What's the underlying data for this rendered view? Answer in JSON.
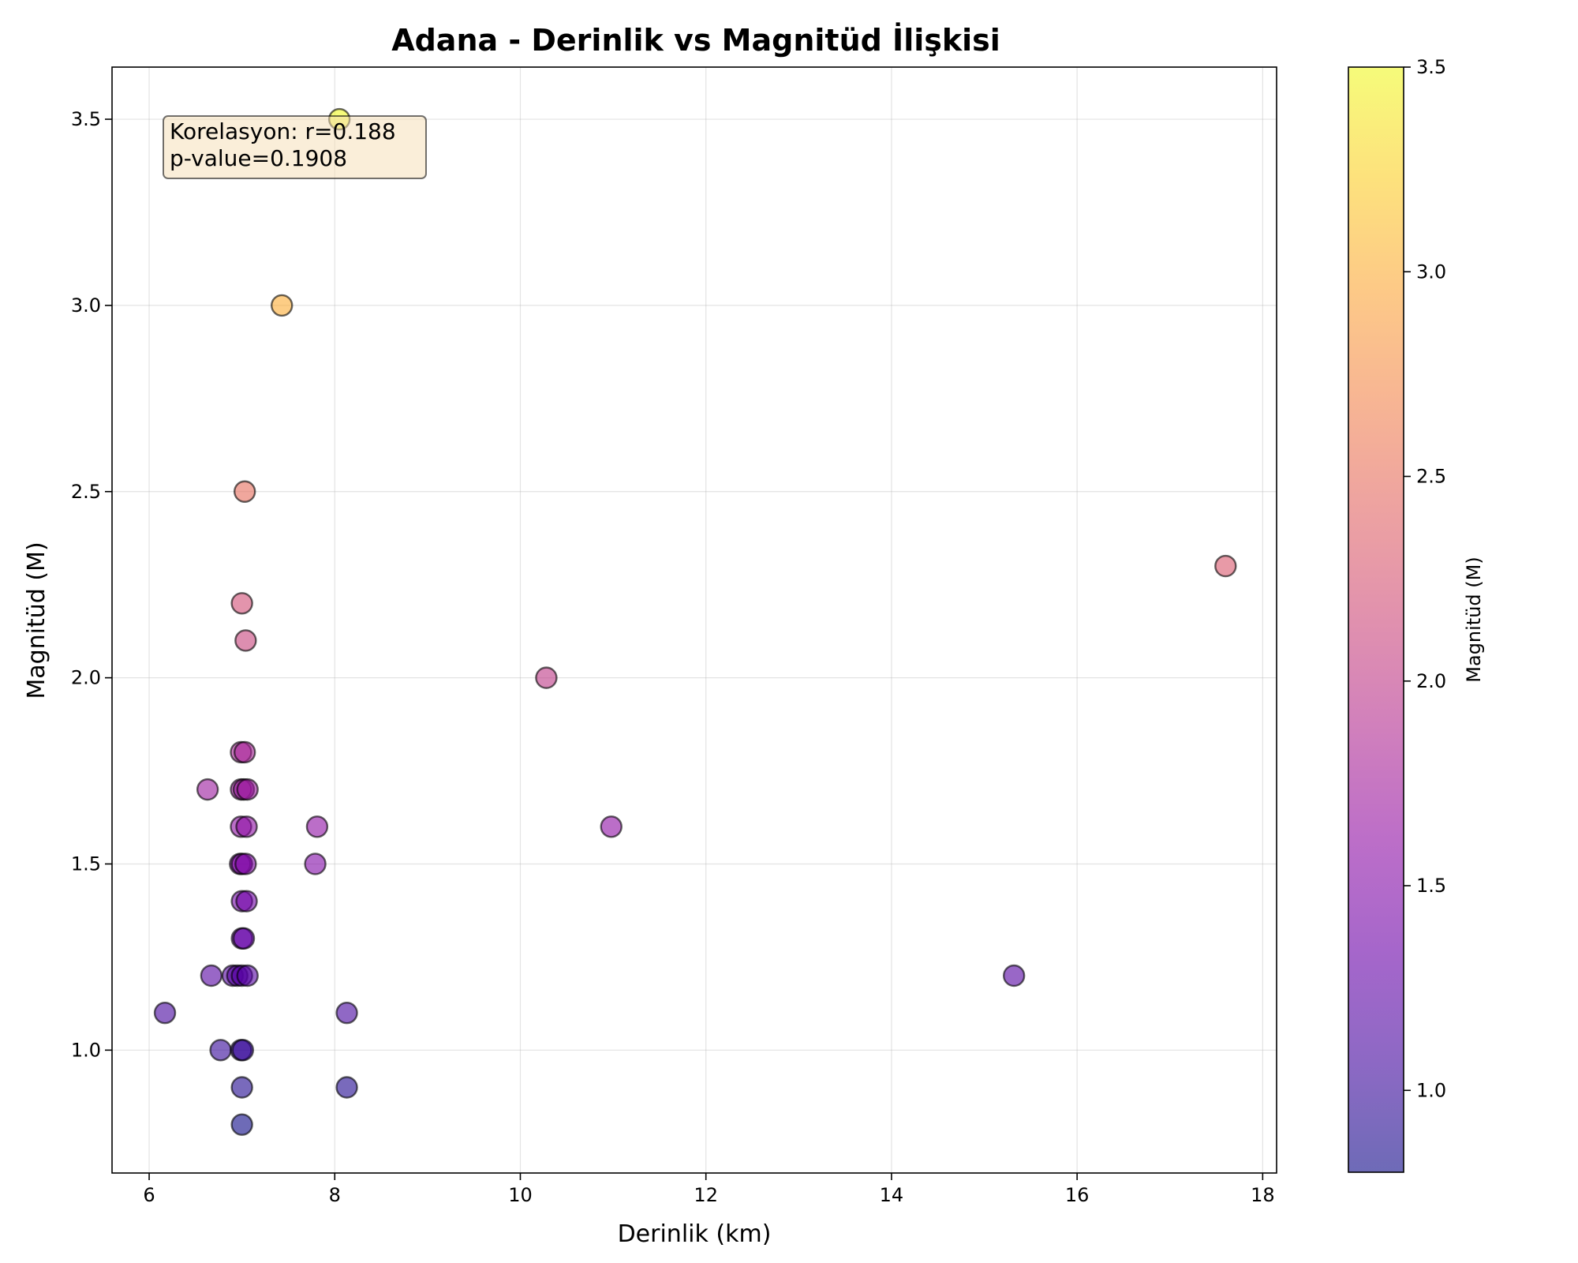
{
  "chart_data": {
    "type": "scatter",
    "title": "Adana - Derinlik vs Magnitüd İlişkisi",
    "xlabel": "Derinlik (km)",
    "ylabel": "Magnitüd (M)",
    "xlim": [
      5.6,
      18.15
    ],
    "ylim": [
      0.67,
      3.64
    ],
    "xticks": [
      6,
      8,
      10,
      12,
      14,
      16,
      18
    ],
    "yticks": [
      1.0,
      1.5,
      2.0,
      2.5,
      3.0,
      3.5
    ],
    "grid": true,
    "colormap": "plasma",
    "marker_alpha": 0.6,
    "marker_edge_color": "#000000",
    "colorbar": {
      "label": "Magnitüd (M)",
      "range": [
        0.8,
        3.5
      ],
      "ticks": [
        1.0,
        1.5,
        2.0,
        2.5,
        3.0,
        3.5
      ]
    },
    "annotation": {
      "lines": [
        "Korelasyon: r=0.188",
        "p-value=0.1908"
      ],
      "box_color": "#f5deb3",
      "placement": "top-left"
    },
    "points": [
      {
        "x": 8.05,
        "y": 3.5
      },
      {
        "x": 7.43,
        "y": 3.0
      },
      {
        "x": 7.03,
        "y": 2.5
      },
      {
        "x": 17.6,
        "y": 2.3
      },
      {
        "x": 7.0,
        "y": 2.2
      },
      {
        "x": 7.04,
        "y": 2.1
      },
      {
        "x": 10.28,
        "y": 2.0
      },
      {
        "x": 6.99,
        "y": 1.8
      },
      {
        "x": 7.03,
        "y": 1.8
      },
      {
        "x": 6.63,
        "y": 1.7
      },
      {
        "x": 6.99,
        "y": 1.7
      },
      {
        "x": 7.02,
        "y": 1.7
      },
      {
        "x": 7.06,
        "y": 1.7
      },
      {
        "x": 7.81,
        "y": 1.6
      },
      {
        "x": 10.98,
        "y": 1.6
      },
      {
        "x": 6.99,
        "y": 1.6
      },
      {
        "x": 7.05,
        "y": 1.6
      },
      {
        "x": 7.79,
        "y": 1.5
      },
      {
        "x": 6.98,
        "y": 1.5
      },
      {
        "x": 7.0,
        "y": 1.5
      },
      {
        "x": 7.04,
        "y": 1.5
      },
      {
        "x": 7.0,
        "y": 1.4
      },
      {
        "x": 7.05,
        "y": 1.4
      },
      {
        "x": 7.0,
        "y": 1.3
      },
      {
        "x": 7.02,
        "y": 1.3
      },
      {
        "x": 6.67,
        "y": 1.2
      },
      {
        "x": 6.9,
        "y": 1.2
      },
      {
        "x": 6.95,
        "y": 1.2
      },
      {
        "x": 7.0,
        "y": 1.2
      },
      {
        "x": 7.06,
        "y": 1.2
      },
      {
        "x": 15.32,
        "y": 1.2
      },
      {
        "x": 6.17,
        "y": 1.1
      },
      {
        "x": 8.13,
        "y": 1.1
      },
      {
        "x": 6.77,
        "y": 1.0
      },
      {
        "x": 6.99,
        "y": 1.0
      },
      {
        "x": 7.01,
        "y": 1.0
      },
      {
        "x": 7.0,
        "y": 0.9
      },
      {
        "x": 8.13,
        "y": 0.9
      },
      {
        "x": 7.0,
        "y": 0.8
      }
    ]
  }
}
